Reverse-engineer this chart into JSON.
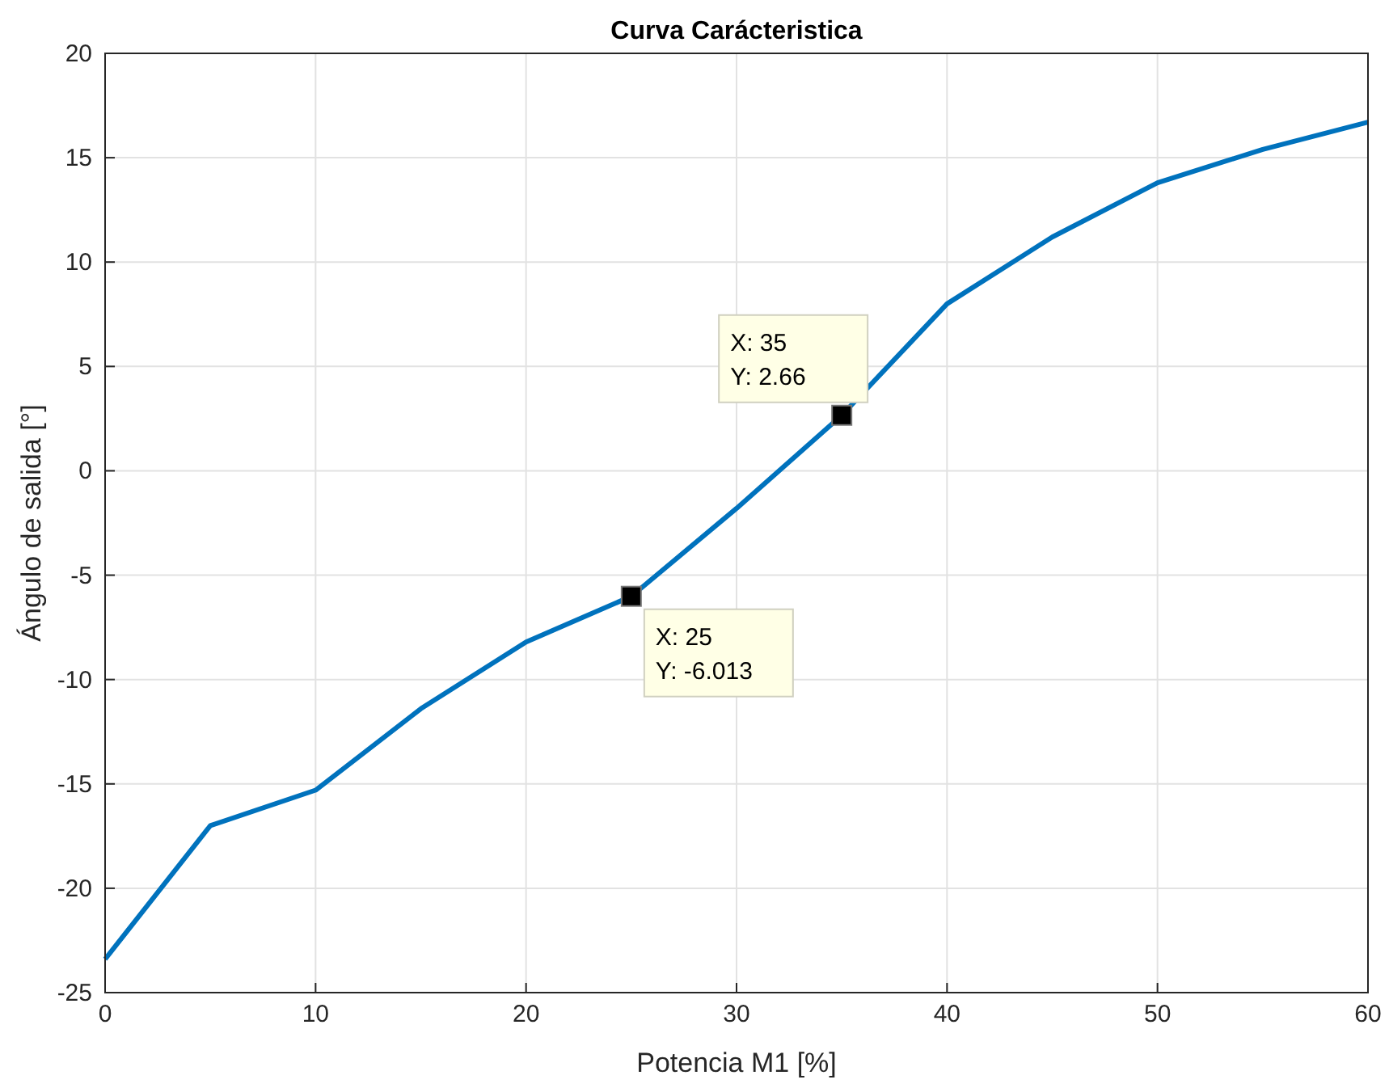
{
  "chart_data": {
    "type": "line",
    "title": "Curva Carácteristica",
    "xlabel": "Potencia M1 [%]",
    "ylabel": "Ángulo de salida [°]",
    "x": [
      0,
      5,
      10,
      15,
      20,
      25,
      30,
      35,
      40,
      45,
      50,
      55,
      60
    ],
    "series": [
      {
        "color": "#0072bd",
        "values": [
          -23.4,
          -17.0,
          -15.3,
          -11.4,
          -8.2,
          -6.013,
          -1.8,
          2.66,
          8.0,
          11.2,
          13.8,
          15.4,
          16.7
        ]
      }
    ],
    "xlim": [
      0,
      60
    ],
    "xticks": [
      0,
      10,
      20,
      30,
      40,
      50,
      60
    ],
    "ylim": [
      -25,
      20
    ],
    "yticks": [
      -25,
      -20,
      -15,
      -10,
      -5,
      0,
      5,
      10,
      15,
      20
    ],
    "grid": true,
    "marker": "none",
    "line_style": "solid",
    "annotations": [
      {
        "text": "X: 25\nY: -6.013",
        "x": 25,
        "y": -6.013
      },
      {
        "text": "X: 35\nY: 2.66",
        "x": 35,
        "y": 2.66
      }
    ]
  }
}
